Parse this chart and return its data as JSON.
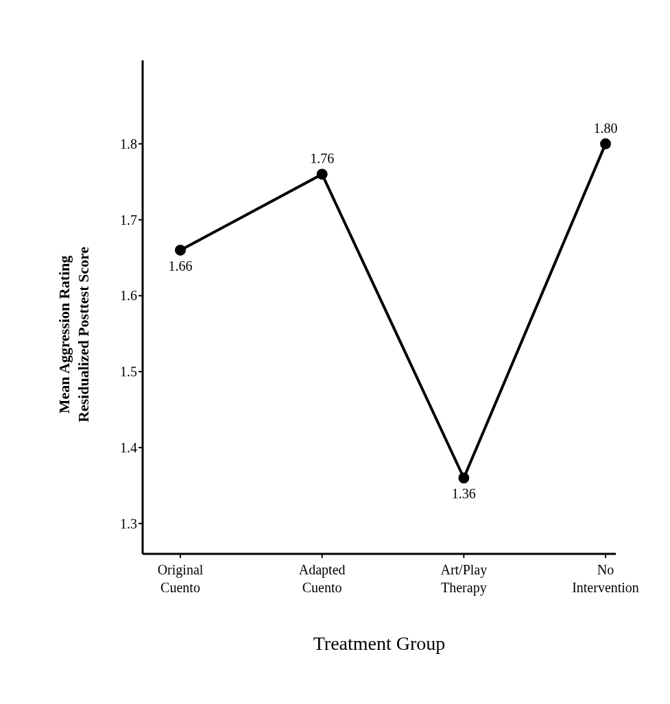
{
  "chart_data": {
    "type": "line",
    "xlabel": "Treatment Group",
    "ylabel": "Mean Aggression Rating\nResidualized Posttest Score",
    "categories": [
      "Original Cuento",
      "Adapted Cuento",
      "Art/Play Therapy",
      "No Intervention"
    ],
    "series": [
      {
        "color": "#000000",
        "values": [
          1.66,
          1.76,
          1.36,
          1.8
        ],
        "value_labels": [
          "1.66",
          "1.76",
          "1.36",
          "1.80"
        ]
      }
    ],
    "ylim": [
      1.26,
      1.91
    ],
    "yticks": [
      1.3,
      1.4,
      1.5,
      1.6,
      1.7,
      1.8
    ],
    "grid": false,
    "legend": false,
    "marker": "circle",
    "line_style": "solid"
  }
}
